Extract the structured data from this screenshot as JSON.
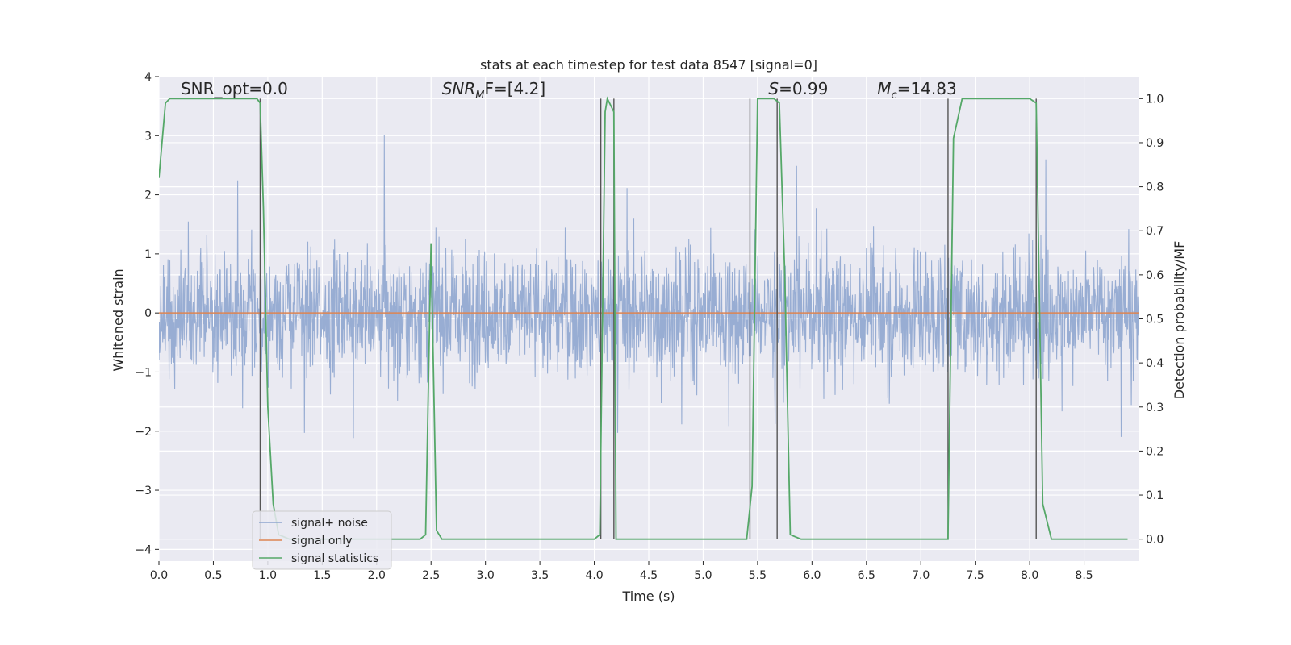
{
  "chart_data": {
    "type": "line",
    "title": "stats at each timestep for test data 8547 [signal=0]",
    "xlabel": "Time (s)",
    "ylabel_left": "Whitened strain",
    "ylabel_right": "Detection probability/MF",
    "xlim": [
      0,
      9
    ],
    "ylim_left": [
      -4.2,
      4.0
    ],
    "ylim_right": [
      -0.05,
      1.05
    ],
    "x_ticks": [
      "0.0",
      "0.5",
      "1.0",
      "1.5",
      "2.0",
      "2.5",
      "3.0",
      "3.5",
      "4.0",
      "4.5",
      "5.0",
      "5.5",
      "6.0",
      "6.5",
      "7.0",
      "7.5",
      "8.0",
      "8.5"
    ],
    "x_tick_values": [
      0,
      0.5,
      1,
      1.5,
      2,
      2.5,
      3,
      3.5,
      4,
      4.5,
      5,
      5.5,
      6,
      6.5,
      7,
      7.5,
      8,
      8.5
    ],
    "left_ticks": [
      "−4",
      "−3",
      "−2",
      "−1",
      "0",
      "1",
      "2",
      "3",
      "4"
    ],
    "left_tick_values": [
      -4,
      -3,
      -2,
      -1,
      0,
      1,
      2,
      3,
      4
    ],
    "right_ticks": [
      "0.0",
      "0.1",
      "0.2",
      "0.3",
      "0.4",
      "0.5",
      "0.6",
      "0.7",
      "0.8",
      "0.9",
      "1.0"
    ],
    "right_tick_values": [
      0,
      0.1,
      0.2,
      0.3,
      0.4,
      0.5,
      0.6,
      0.7,
      0.8,
      0.9,
      1.0
    ],
    "grid": true,
    "legend_position": "lower-left",
    "annotations": [
      {
        "text": "SNR_opt=0.0",
        "x": 0.2,
        "y": 3.7
      },
      {
        "text": "SNR",
        "sub": "M",
        "suffix": "F=[4.2]",
        "italic": true,
        "x": 2.6,
        "y": 3.7
      },
      {
        "text": "S",
        "suffix": "=0.99",
        "italic": true,
        "x": 5.6,
        "y": 3.7
      },
      {
        "text": "M",
        "sub": "c",
        "suffix": "=14.83",
        "italic": true,
        "x": 6.6,
        "y": 3.7
      }
    ],
    "series": [
      {
        "name": "signal+ noise",
        "color": "#8fa6cf",
        "axis": "left",
        "envelope": {
          "typical_abs": 1.25,
          "peak_abs": 3.6,
          "min_peak": -4.0,
          "max_peak": 3.5
        }
      },
      {
        "name": "signal only",
        "color": "#dd8452",
        "axis": "left",
        "x": [
          0,
          9
        ],
        "y": [
          0,
          0
        ]
      },
      {
        "name": "signal statistics",
        "color": "#55a868",
        "axis": "right",
        "x": [
          0.0,
          0.06,
          0.1,
          0.9,
          0.93,
          0.96,
          1.0,
          1.05,
          1.1,
          1.2,
          1.9,
          2.0,
          2.4,
          2.45,
          2.5,
          2.55,
          2.6,
          3.0,
          4.0,
          4.05,
          4.1,
          4.12,
          4.18,
          4.2,
          4.25,
          4.4,
          4.5,
          5.0,
          5.4,
          5.45,
          5.5,
          5.65,
          5.7,
          5.75,
          5.8,
          5.9,
          6.5,
          6.9,
          7.0,
          7.25,
          7.3,
          7.38,
          7.5,
          8.0,
          8.06,
          8.12,
          8.2,
          8.9
        ],
        "y": [
          0.82,
          0.99,
          1.0,
          1.0,
          0.99,
          0.75,
          0.3,
          0.08,
          0.01,
          0.0,
          0.0,
          0.0,
          0.0,
          0.01,
          0.67,
          0.02,
          0.0,
          0.0,
          0.0,
          0.01,
          0.97,
          1.0,
          0.97,
          0.0,
          0.0,
          0.0,
          0.0,
          0.0,
          0.0,
          0.12,
          1.0,
          1.0,
          0.99,
          0.6,
          0.01,
          0.0,
          0.0,
          0.0,
          0.0,
          0.0,
          0.91,
          1.0,
          1.0,
          1.0,
          0.99,
          0.08,
          0.0,
          0.0
        ]
      }
    ],
    "vlines": [
      0.93,
      4.06,
      4.18,
      5.43,
      5.68,
      7.25,
      8.06
    ]
  }
}
